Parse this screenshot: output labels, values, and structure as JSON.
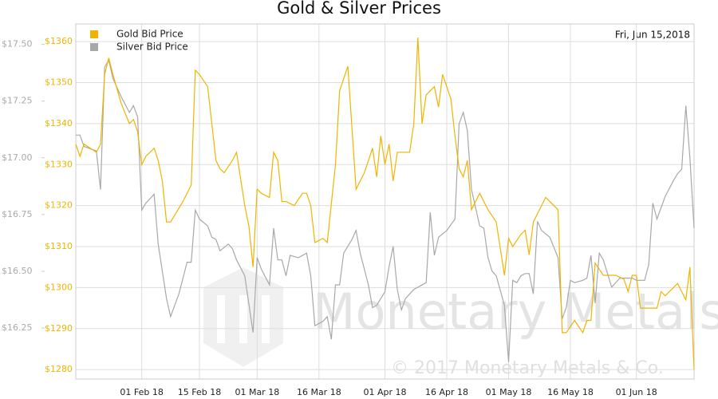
{
  "chart_data": {
    "type": "line",
    "title": "Gold & Silver Prices",
    "annotation": "Fri, Jun 15,2018",
    "watermark": "Monetary Metals",
    "copyright": "© 2017 Monetary Metals & Co.",
    "legend": "top-left",
    "grid": true,
    "xlim": [
      "2018-01-16",
      "2018-06-15"
    ],
    "xticks": [
      {
        "value": "2018-02-01",
        "label": "01 Feb 18"
      },
      {
        "value": "2018-02-15",
        "label": "15 Feb 18"
      },
      {
        "value": "2018-03-01",
        "label": "01 Mar 18"
      },
      {
        "value": "2018-03-16",
        "label": "16 Mar 18"
      },
      {
        "value": "2018-04-01",
        "label": "01 Apr 18"
      },
      {
        "value": "2018-04-16",
        "label": "16 Apr 18"
      },
      {
        "value": "2018-05-01",
        "label": "01 May 18"
      },
      {
        "value": "2018-05-16",
        "label": "16 May 18"
      },
      {
        "value": "2018-06-01",
        "label": "01 Jun 18"
      }
    ],
    "ylim": [
      1277.7,
      1364.3
    ],
    "yticks": [
      {
        "value": 1280,
        "label": "$1280"
      },
      {
        "value": 1290,
        "label": "$1290"
      },
      {
        "value": 1300,
        "label": "$1300"
      },
      {
        "value": 1310,
        "label": "$1310"
      },
      {
        "value": 1320,
        "label": "$1320"
      },
      {
        "value": 1330,
        "label": "$1330"
      },
      {
        "value": 1340,
        "label": "$1340"
      },
      {
        "value": 1350,
        "label": "$1350"
      },
      {
        "value": 1360,
        "label": "$1360"
      }
    ],
    "y2lim": [
      16.025,
      17.59
    ],
    "y2ticks": [
      {
        "value": 16.25,
        "label": "$16.25"
      },
      {
        "value": 16.5,
        "label": "$16.50"
      },
      {
        "value": 16.75,
        "label": "$16.75"
      },
      {
        "value": 17,
        "label": "$17.00"
      },
      {
        "value": 17.25,
        "label": "$17.25"
      },
      {
        "value": 17.5,
        "label": "$17.50"
      }
    ],
    "series": [
      {
        "name": "Gold Bid Price",
        "color": "#f0b400",
        "x": [
          "2018-01-16",
          "2018-01-17",
          "2018-01-18",
          "2018-01-21",
          "2018-01-22",
          "2018-01-23",
          "2018-01-24",
          "2018-01-25",
          "2018-01-27",
          "2018-01-29",
          "2018-01-30",
          "2018-01-31",
          "2018-02-01",
          "2018-02-02",
          "2018-02-04",
          "2018-02-05",
          "2018-02-06",
          "2018-02-07",
          "2018-02-08",
          "2018-02-11",
          "2018-02-13",
          "2018-02-14",
          "2018-02-15",
          "2018-02-17",
          "2018-02-19",
          "2018-02-20",
          "2018-02-21",
          "2018-02-23",
          "2018-02-24",
          "2018-02-26",
          "2018-02-27",
          "2018-02-28",
          "2018-03-01",
          "2018-03-02",
          "2018-03-04",
          "2018-03-05",
          "2018-03-06",
          "2018-03-07",
          "2018-03-08",
          "2018-03-10",
          "2018-03-12",
          "2018-03-13",
          "2018-03-14",
          "2018-03-15",
          "2018-03-17",
          "2018-03-18",
          "2018-03-20",
          "2018-03-21",
          "2018-03-23",
          "2018-03-25",
          "2018-03-27",
          "2018-03-29",
          "2018-03-30",
          "2018-03-31",
          "2018-04-01",
          "2018-04-02",
          "2018-04-03",
          "2018-04-04",
          "2018-04-07",
          "2018-04-08",
          "2018-04-09",
          "2018-04-10",
          "2018-04-11",
          "2018-04-13",
          "2018-04-14",
          "2018-04-15",
          "2018-04-17",
          "2018-04-18",
          "2018-04-19",
          "2018-04-20",
          "2018-04-21",
          "2018-04-22",
          "2018-04-24",
          "2018-04-26",
          "2018-04-28",
          "2018-04-30",
          "2018-05-01",
          "2018-05-02",
          "2018-05-04",
          "2018-05-05",
          "2018-05-06",
          "2018-05-07",
          "2018-05-08",
          "2018-05-10",
          "2018-05-12",
          "2018-05-13",
          "2018-05-14",
          "2018-05-15",
          "2018-05-17",
          "2018-05-19",
          "2018-05-20",
          "2018-05-21",
          "2018-05-22",
          "2018-05-24",
          "2018-05-27",
          "2018-05-29",
          "2018-05-30",
          "2018-05-31",
          "2018-06-01",
          "2018-06-02",
          "2018-06-05",
          "2018-06-06",
          "2018-06-07",
          "2018-06-08",
          "2018-06-11",
          "2018-06-12",
          "2018-06-13",
          "2018-06-14",
          "2018-06-15"
        ],
        "values": [
          1335,
          1332,
          1335,
          1333,
          1335,
          1352,
          1356,
          1352,
          1345,
          1340,
          1341,
          1338,
          1330,
          1332,
          1334,
          1331,
          1326,
          1316,
          1316,
          1321,
          1325,
          1353,
          1352,
          1349,
          1331,
          1329,
          1328,
          1331,
          1333,
          1320,
          1315,
          1305,
          1324,
          1323,
          1322,
          1333,
          1331,
          1321,
          1321,
          1320,
          1323,
          1323,
          1320,
          1311,
          1312,
          1311,
          1330,
          1348,
          1354,
          1324,
          1328,
          1334,
          1327,
          1337,
          1330,
          1335,
          1326,
          1333,
          1333,
          1340,
          1361,
          1340,
          1347,
          1349,
          1344,
          1352,
          1346,
          1337,
          1329,
          1327,
          1331,
          1319,
          1323,
          1319,
          1316,
          1303,
          1312,
          1310,
          1313,
          1314,
          1308,
          1316,
          1318,
          1322,
          1320,
          1319,
          1289,
          1289,
          1292,
          1289,
          1292,
          1292,
          1306,
          1303,
          1303,
          1302,
          1299,
          1303,
          1303,
          1295,
          1295,
          1295,
          1299,
          1298,
          1301,
          1299,
          1297,
          1305,
          1280
        ]
      },
      {
        "name": "Silver Bid Price",
        "color": "#a8a8a8",
        "axis": "y2",
        "x": [
          "2018-01-16",
          "2018-01-17",
          "2018-01-18",
          "2018-01-21",
          "2018-01-22",
          "2018-01-23",
          "2018-01-24",
          "2018-01-25",
          "2018-01-27",
          "2018-01-29",
          "2018-01-30",
          "2018-01-31",
          "2018-02-01",
          "2018-02-02",
          "2018-02-04",
          "2018-02-05",
          "2018-02-06",
          "2018-02-07",
          "2018-02-08",
          "2018-02-10",
          "2018-02-12",
          "2018-02-13",
          "2018-02-14",
          "2018-02-15",
          "2018-02-17",
          "2018-02-18",
          "2018-02-19",
          "2018-02-20",
          "2018-02-22",
          "2018-02-23",
          "2018-02-24",
          "2018-02-26",
          "2018-02-28",
          "2018-03-01",
          "2018-03-02",
          "2018-03-04",
          "2018-03-05",
          "2018-03-06",
          "2018-03-07",
          "2018-03-08",
          "2018-03-09",
          "2018-03-11",
          "2018-03-13",
          "2018-03-14",
          "2018-03-15",
          "2018-03-17",
          "2018-03-18",
          "2018-03-19",
          "2018-03-20",
          "2018-03-21",
          "2018-03-22",
          "2018-03-24",
          "2018-03-25",
          "2018-03-26",
          "2018-03-28",
          "2018-03-29",
          "2018-03-30",
          "2018-04-01",
          "2018-04-02",
          "2018-04-03",
          "2018-04-04",
          "2018-04-05",
          "2018-04-06",
          "2018-04-08",
          "2018-04-11",
          "2018-04-12",
          "2018-04-13",
          "2018-04-14",
          "2018-04-16",
          "2018-04-18",
          "2018-04-19",
          "2018-04-20",
          "2018-04-21",
          "2018-04-22",
          "2018-04-24",
          "2018-04-25",
          "2018-04-26",
          "2018-04-27",
          "2018-04-28",
          "2018-04-30",
          "2018-05-01",
          "2018-05-02",
          "2018-05-03",
          "2018-05-04",
          "2018-05-05",
          "2018-05-06",
          "2018-05-07",
          "2018-05-08",
          "2018-05-09",
          "2018-05-11",
          "2018-05-13",
          "2018-05-14",
          "2018-05-15",
          "2018-05-16",
          "2018-05-17",
          "2018-05-19",
          "2018-05-20",
          "2018-05-21",
          "2018-05-22",
          "2018-05-23",
          "2018-05-24",
          "2018-05-26",
          "2018-05-28",
          "2018-05-31",
          "2018-06-01",
          "2018-06-03",
          "2018-06-04",
          "2018-06-05",
          "2018-06-06",
          "2018-06-08",
          "2018-06-10",
          "2018-06-11",
          "2018-06-12",
          "2018-06-13",
          "2018-06-14",
          "2018-06-15"
        ],
        "values": [
          17.1,
          17.1,
          17.05,
          17.03,
          16.86,
          17.4,
          17.43,
          17.35,
          17.27,
          17.2,
          17.23,
          17.18,
          16.77,
          16.8,
          16.84,
          16.62,
          16.5,
          16.38,
          16.3,
          16.4,
          16.54,
          16.54,
          16.77,
          16.73,
          16.7,
          16.65,
          16.64,
          16.59,
          16.62,
          16.6,
          16.55,
          16.48,
          16.23,
          16.56,
          16.51,
          16.44,
          16.69,
          16.55,
          16.55,
          16.48,
          16.57,
          16.56,
          16.58,
          16.48,
          16.26,
          16.28,
          16.3,
          16.2,
          16.44,
          16.44,
          16.58,
          16.64,
          16.68,
          16.58,
          16.44,
          16.34,
          16.35,
          16.41,
          16.52,
          16.61,
          16.42,
          16.33,
          16.38,
          16.42,
          16.45,
          16.76,
          16.57,
          16.65,
          16.68,
          16.73,
          17.15,
          17.2,
          17.12,
          16.86,
          16.7,
          16.69,
          16.56,
          16.5,
          16.48,
          16.35,
          16.1,
          16.46,
          16.45,
          16.48,
          16.49,
          16.49,
          16.4,
          16.72,
          16.68,
          16.65,
          16.56,
          16.29,
          16.34,
          16.46,
          16.45,
          16.46,
          16.47,
          16.57,
          16.36,
          16.58,
          16.55,
          16.43,
          16.47,
          16.47,
          16.46,
          16.46,
          16.53,
          16.8,
          16.73,
          16.83,
          16.9,
          16.93,
          16.95,
          17.23,
          17.0,
          16.69
        ]
      }
    ]
  }
}
